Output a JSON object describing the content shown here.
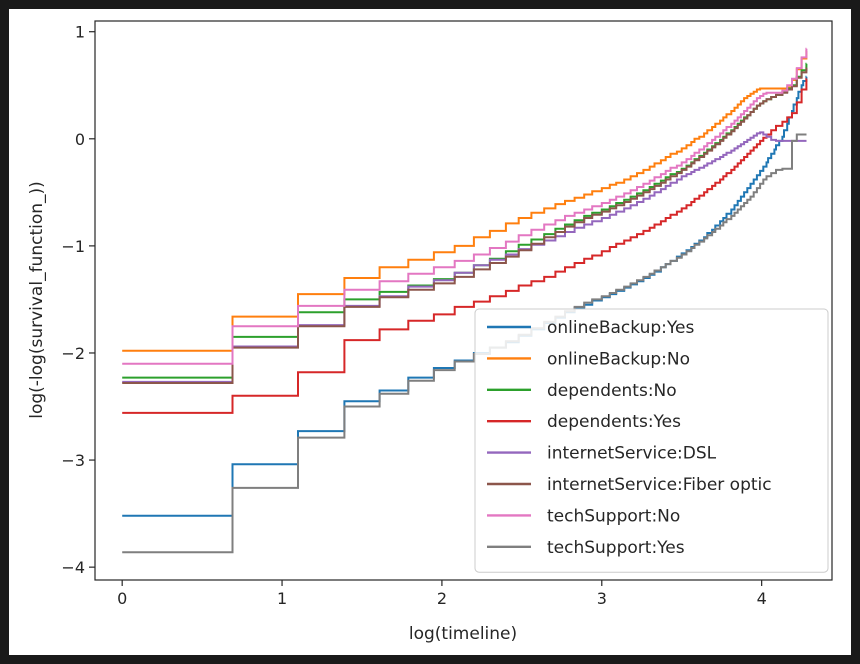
{
  "chart_data": {
    "type": "line",
    "step": true,
    "title": "",
    "xlabel": "log(timeline)",
    "ylabel": "log(-log(survival_function_))",
    "xlim": [
      -0.17,
      4.44
    ],
    "ylim": [
      -4.12,
      1.1
    ],
    "xticks": [
      0,
      1,
      2,
      3,
      4
    ],
    "yticks": [
      -4,
      -3,
      -2,
      -1,
      0,
      1
    ],
    "xtick_labels": [
      "0",
      "1",
      "2",
      "3",
      "4"
    ],
    "ytick_labels": [
      "−4",
      "−3",
      "−2",
      "−1",
      "0",
      "1"
    ],
    "grid": false,
    "legend_position": "lower-right",
    "series": [
      {
        "name": "onlineBackup:Yes",
        "color": "#1f77b4",
        "x": [
          0,
          0.69,
          1.1,
          1.39,
          1.61,
          1.79,
          1.95,
          2.08,
          2.2,
          2.3,
          2.4,
          2.48,
          2.56,
          2.64,
          2.71,
          2.77,
          2.83,
          2.89,
          2.94,
          3.0,
          3.05,
          3.09,
          3.14,
          3.18,
          3.22,
          3.26,
          3.3,
          3.33,
          3.37,
          3.4,
          3.43,
          3.47,
          3.5,
          3.53,
          3.56,
          3.58,
          3.61,
          3.64,
          3.66,
          3.69,
          3.71,
          3.74,
          3.76,
          3.78,
          3.81,
          3.83,
          3.85,
          3.87,
          3.89,
          3.91,
          3.93,
          3.95,
          3.97,
          3.99,
          4.01,
          4.03,
          4.04,
          4.06,
          4.08,
          4.09,
          4.11,
          4.13,
          4.14,
          4.16,
          4.17,
          4.19,
          4.2,
          4.22,
          4.23,
          4.25,
          4.26,
          4.28
        ],
        "y": [
          -3.52,
          -3.04,
          -2.73,
          -2.45,
          -2.35,
          -2.23,
          -2.14,
          -2.07,
          -2.0,
          -1.95,
          -1.9,
          -1.84,
          -1.78,
          -1.72,
          -1.67,
          -1.62,
          -1.58,
          -1.55,
          -1.51,
          -1.48,
          -1.45,
          -1.42,
          -1.39,
          -1.36,
          -1.33,
          -1.3,
          -1.27,
          -1.24,
          -1.2,
          -1.17,
          -1.14,
          -1.1,
          -1.07,
          -1.04,
          -1.01,
          -0.98,
          -0.95,
          -0.92,
          -0.88,
          -0.85,
          -0.81,
          -0.77,
          -0.74,
          -0.7,
          -0.66,
          -0.62,
          -0.58,
          -0.54,
          -0.5,
          -0.46,
          -0.42,
          -0.38,
          -0.34,
          -0.3,
          -0.26,
          -0.22,
          -0.18,
          -0.14,
          -0.1,
          -0.06,
          -0.02,
          0.02,
          0.08,
          0.14,
          0.2,
          0.26,
          0.32,
          0.38,
          0.44,
          0.5,
          0.54,
          0.58
        ]
      },
      {
        "name": "onlineBackup:No",
        "color": "#ff7f0e",
        "x": [
          0,
          0.69,
          1.1,
          1.39,
          1.61,
          1.79,
          1.95,
          2.08,
          2.2,
          2.3,
          2.4,
          2.48,
          2.56,
          2.64,
          2.71,
          2.77,
          2.83,
          2.89,
          2.94,
          3.0,
          3.05,
          3.09,
          3.14,
          3.18,
          3.22,
          3.26,
          3.3,
          3.33,
          3.37,
          3.4,
          3.43,
          3.47,
          3.5,
          3.53,
          3.56,
          3.58,
          3.61,
          3.64,
          3.66,
          3.69,
          3.71,
          3.74,
          3.76,
          3.78,
          3.81,
          3.83,
          3.85,
          3.87,
          3.89,
          3.91,
          3.93,
          3.95,
          3.97,
          3.99,
          4.01,
          4.03,
          4.06,
          4.09,
          4.13,
          4.16,
          4.19,
          4.22,
          4.25,
          4.28
        ],
        "y": [
          -1.98,
          -1.66,
          -1.45,
          -1.3,
          -1.2,
          -1.13,
          -1.06,
          -1.0,
          -0.92,
          -0.86,
          -0.79,
          -0.74,
          -0.69,
          -0.65,
          -0.61,
          -0.58,
          -0.55,
          -0.52,
          -0.49,
          -0.46,
          -0.43,
          -0.41,
          -0.38,
          -0.35,
          -0.32,
          -0.29,
          -0.26,
          -0.23,
          -0.2,
          -0.17,
          -0.14,
          -0.12,
          -0.09,
          -0.06,
          -0.03,
          0.0,
          0.02,
          0.05,
          0.08,
          0.11,
          0.14,
          0.17,
          0.2,
          0.23,
          0.26,
          0.29,
          0.32,
          0.35,
          0.38,
          0.4,
          0.42,
          0.44,
          0.46,
          0.47,
          0.47,
          0.47,
          0.47,
          0.47,
          0.47,
          0.48,
          0.55,
          0.65,
          0.75,
          0.82
        ]
      },
      {
        "name": "dependents:No",
        "color": "#2ca02c",
        "x": [
          0,
          0.69,
          1.1,
          1.39,
          1.61,
          1.79,
          1.95,
          2.08,
          2.2,
          2.3,
          2.4,
          2.48,
          2.56,
          2.64,
          2.71,
          2.77,
          2.83,
          2.89,
          2.94,
          3.0,
          3.05,
          3.09,
          3.14,
          3.18,
          3.22,
          3.26,
          3.3,
          3.33,
          3.37,
          3.4,
          3.43,
          3.47,
          3.5,
          3.53,
          3.56,
          3.58,
          3.61,
          3.64,
          3.66,
          3.69,
          3.71,
          3.74,
          3.76,
          3.78,
          3.81,
          3.83,
          3.85,
          3.87,
          3.89,
          3.91,
          3.93,
          3.95,
          3.97,
          3.99,
          4.01,
          4.03,
          4.06,
          4.09,
          4.13,
          4.16,
          4.19,
          4.22,
          4.25,
          4.28
        ],
        "y": [
          -2.23,
          -1.85,
          -1.62,
          -1.5,
          -1.43,
          -1.37,
          -1.31,
          -1.25,
          -1.18,
          -1.12,
          -1.05,
          -0.99,
          -0.94,
          -0.89,
          -0.84,
          -0.8,
          -0.76,
          -0.72,
          -0.69,
          -0.66,
          -0.63,
          -0.6,
          -0.57,
          -0.54,
          -0.51,
          -0.48,
          -0.45,
          -0.42,
          -0.39,
          -0.36,
          -0.33,
          -0.31,
          -0.28,
          -0.25,
          -0.22,
          -0.19,
          -0.16,
          -0.13,
          -0.1,
          -0.07,
          -0.04,
          -0.01,
          0.02,
          0.05,
          0.08,
          0.11,
          0.14,
          0.17,
          0.2,
          0.22,
          0.25,
          0.28,
          0.31,
          0.33,
          0.35,
          0.37,
          0.39,
          0.41,
          0.44,
          0.47,
          0.5,
          0.58,
          0.64,
          0.7
        ]
      },
      {
        "name": "dependents:Yes",
        "color": "#d62728",
        "x": [
          0,
          0.69,
          1.1,
          1.39,
          1.61,
          1.79,
          1.95,
          2.08,
          2.2,
          2.3,
          2.4,
          2.48,
          2.56,
          2.64,
          2.71,
          2.77,
          2.83,
          2.89,
          2.94,
          3.0,
          3.05,
          3.09,
          3.14,
          3.18,
          3.22,
          3.26,
          3.3,
          3.33,
          3.37,
          3.4,
          3.43,
          3.47,
          3.5,
          3.53,
          3.56,
          3.58,
          3.61,
          3.64,
          3.66,
          3.69,
          3.71,
          3.74,
          3.76,
          3.78,
          3.81,
          3.83,
          3.85,
          3.87,
          3.89,
          3.91,
          3.93,
          3.95,
          3.97,
          3.99,
          4.01,
          4.03,
          4.06,
          4.09,
          4.13,
          4.16,
          4.19,
          4.22,
          4.25,
          4.28
        ],
        "y": [
          -2.56,
          -2.4,
          -2.18,
          -1.88,
          -1.78,
          -1.7,
          -1.64,
          -1.57,
          -1.52,
          -1.47,
          -1.42,
          -1.37,
          -1.33,
          -1.29,
          -1.24,
          -1.2,
          -1.16,
          -1.12,
          -1.09,
          -1.05,
          -1.01,
          -0.98,
          -0.95,
          -0.92,
          -0.89,
          -0.86,
          -0.83,
          -0.8,
          -0.77,
          -0.74,
          -0.71,
          -0.68,
          -0.65,
          -0.62,
          -0.59,
          -0.56,
          -0.53,
          -0.5,
          -0.47,
          -0.44,
          -0.41,
          -0.38,
          -0.35,
          -0.32,
          -0.29,
          -0.26,
          -0.23,
          -0.2,
          -0.17,
          -0.14,
          -0.11,
          -0.08,
          -0.05,
          -0.02,
          0.01,
          0.04,
          0.08,
          0.12,
          0.16,
          0.2,
          0.24,
          0.34,
          0.46,
          0.56
        ]
      },
      {
        "name": "internetService:DSL",
        "color": "#9467bd",
        "x": [
          0,
          0.69,
          1.1,
          1.39,
          1.61,
          1.79,
          1.95,
          2.08,
          2.2,
          2.3,
          2.4,
          2.48,
          2.56,
          2.64,
          2.71,
          2.77,
          2.83,
          2.89,
          2.94,
          3.0,
          3.05,
          3.09,
          3.14,
          3.18,
          3.22,
          3.26,
          3.3,
          3.33,
          3.37,
          3.4,
          3.43,
          3.47,
          3.5,
          3.53,
          3.56,
          3.58,
          3.61,
          3.64,
          3.66,
          3.69,
          3.71,
          3.74,
          3.76,
          3.78,
          3.81,
          3.83,
          3.85,
          3.87,
          3.89,
          3.91,
          3.93,
          3.95,
          3.97,
          3.99,
          4.01,
          4.03,
          4.06,
          4.09,
          4.13,
          4.16,
          4.19,
          4.22,
          4.25,
          4.28
        ],
        "y": [
          -2.27,
          -1.94,
          -1.74,
          -1.56,
          -1.47,
          -1.38,
          -1.32,
          -1.25,
          -1.18,
          -1.13,
          -1.08,
          -1.03,
          -0.99,
          -0.95,
          -0.91,
          -0.87,
          -0.83,
          -0.8,
          -0.77,
          -0.74,
          -0.71,
          -0.68,
          -0.65,
          -0.62,
          -0.59,
          -0.56,
          -0.53,
          -0.5,
          -0.47,
          -0.44,
          -0.41,
          -0.38,
          -0.35,
          -0.33,
          -0.31,
          -0.29,
          -0.27,
          -0.25,
          -0.23,
          -0.21,
          -0.19,
          -0.17,
          -0.15,
          -0.13,
          -0.11,
          -0.09,
          -0.07,
          -0.05,
          -0.03,
          -0.01,
          0.01,
          0.03,
          0.05,
          0.06,
          0.04,
          0.02,
          -0.01,
          -0.02,
          -0.02,
          -0.02,
          -0.02,
          -0.02,
          -0.02,
          -0.02
        ]
      },
      {
        "name": "internetService:Fiber optic",
        "color": "#8c564b",
        "x": [
          0,
          0.69,
          1.1,
          1.39,
          1.61,
          1.79,
          1.95,
          2.08,
          2.2,
          2.3,
          2.4,
          2.48,
          2.56,
          2.64,
          2.71,
          2.77,
          2.83,
          2.89,
          2.94,
          3.0,
          3.05,
          3.09,
          3.14,
          3.18,
          3.22,
          3.26,
          3.3,
          3.33,
          3.37,
          3.4,
          3.43,
          3.47,
          3.5,
          3.53,
          3.56,
          3.58,
          3.61,
          3.64,
          3.66,
          3.69,
          3.71,
          3.74,
          3.76,
          3.78,
          3.81,
          3.83,
          3.85,
          3.87,
          3.89,
          3.91,
          3.93,
          3.95,
          3.97,
          3.99,
          4.01,
          4.03,
          4.06,
          4.09,
          4.13,
          4.16,
          4.19,
          4.22,
          4.25,
          4.28
        ],
        "y": [
          -2.28,
          -1.95,
          -1.75,
          -1.57,
          -1.48,
          -1.41,
          -1.35,
          -1.29,
          -1.22,
          -1.16,
          -1.1,
          -1.04,
          -0.98,
          -0.92,
          -0.87,
          -0.82,
          -0.78,
          -0.74,
          -0.71,
          -0.68,
          -0.65,
          -0.62,
          -0.59,
          -0.56,
          -0.53,
          -0.5,
          -0.47,
          -0.44,
          -0.41,
          -0.38,
          -0.35,
          -0.32,
          -0.29,
          -0.26,
          -0.23,
          -0.2,
          -0.17,
          -0.14,
          -0.11,
          -0.08,
          -0.05,
          -0.02,
          0.01,
          0.04,
          0.07,
          0.1,
          0.13,
          0.16,
          0.19,
          0.22,
          0.25,
          0.28,
          0.31,
          0.33,
          0.35,
          0.37,
          0.39,
          0.41,
          0.43,
          0.46,
          0.49,
          0.57,
          0.62,
          0.66
        ]
      },
      {
        "name": "techSupport:No",
        "color": "#e377c2",
        "x": [
          0,
          0.69,
          1.1,
          1.39,
          1.61,
          1.79,
          1.95,
          2.08,
          2.2,
          2.3,
          2.4,
          2.48,
          2.56,
          2.64,
          2.71,
          2.77,
          2.83,
          2.89,
          2.94,
          3.0,
          3.05,
          3.09,
          3.14,
          3.18,
          3.22,
          3.26,
          3.3,
          3.33,
          3.37,
          3.4,
          3.43,
          3.47,
          3.5,
          3.53,
          3.56,
          3.58,
          3.61,
          3.64,
          3.66,
          3.69,
          3.71,
          3.74,
          3.76,
          3.78,
          3.81,
          3.83,
          3.85,
          3.87,
          3.89,
          3.91,
          3.93,
          3.95,
          3.97,
          3.99,
          4.01,
          4.03,
          4.06,
          4.09,
          4.13,
          4.16,
          4.19,
          4.22,
          4.25,
          4.28
        ],
        "y": [
          -2.1,
          -1.75,
          -1.56,
          -1.41,
          -1.33,
          -1.26,
          -1.2,
          -1.14,
          -1.08,
          -1.02,
          -0.96,
          -0.9,
          -0.85,
          -0.8,
          -0.76,
          -0.72,
          -0.69,
          -0.66,
          -0.63,
          -0.6,
          -0.57,
          -0.54,
          -0.51,
          -0.48,
          -0.45,
          -0.42,
          -0.39,
          -0.36,
          -0.33,
          -0.3,
          -0.27,
          -0.25,
          -0.22,
          -0.19,
          -0.16,
          -0.13,
          -0.1,
          -0.07,
          -0.04,
          -0.01,
          0.02,
          0.05,
          0.08,
          0.11,
          0.14,
          0.17,
          0.2,
          0.23,
          0.26,
          0.29,
          0.32,
          0.35,
          0.38,
          0.4,
          0.42,
          0.43,
          0.43,
          0.43,
          0.45,
          0.5,
          0.56,
          0.66,
          0.76,
          0.84
        ]
      },
      {
        "name": "techSupport:Yes",
        "color": "#7f7f7f",
        "x": [
          0,
          0.69,
          1.1,
          1.39,
          1.61,
          1.79,
          1.95,
          2.08,
          2.2,
          2.3,
          2.4,
          2.48,
          2.56,
          2.64,
          2.71,
          2.77,
          2.83,
          2.89,
          2.94,
          3.0,
          3.05,
          3.09,
          3.14,
          3.18,
          3.22,
          3.26,
          3.3,
          3.33,
          3.37,
          3.4,
          3.43,
          3.47,
          3.5,
          3.53,
          3.56,
          3.58,
          3.61,
          3.64,
          3.66,
          3.69,
          3.71,
          3.74,
          3.76,
          3.78,
          3.81,
          3.83,
          3.85,
          3.87,
          3.89,
          3.91,
          3.93,
          3.95,
          3.97,
          3.99,
          4.01,
          4.03,
          4.06,
          4.09,
          4.13,
          4.16,
          4.19,
          4.22,
          4.25,
          4.28
        ],
        "y": [
          -3.86,
          -3.26,
          -2.79,
          -2.5,
          -2.38,
          -2.26,
          -2.16,
          -2.08,
          -2.01,
          -1.95,
          -1.89,
          -1.83,
          -1.77,
          -1.71,
          -1.66,
          -1.61,
          -1.57,
          -1.53,
          -1.5,
          -1.47,
          -1.44,
          -1.41,
          -1.38,
          -1.35,
          -1.32,
          -1.29,
          -1.26,
          -1.23,
          -1.2,
          -1.17,
          -1.14,
          -1.11,
          -1.08,
          -1.05,
          -1.02,
          -0.99,
          -0.96,
          -0.93,
          -0.9,
          -0.87,
          -0.84,
          -0.81,
          -0.78,
          -0.75,
          -0.72,
          -0.69,
          -0.66,
          -0.63,
          -0.6,
          -0.57,
          -0.54,
          -0.5,
          -0.46,
          -0.42,
          -0.38,
          -0.35,
          -0.32,
          -0.29,
          -0.28,
          -0.28,
          -0.02,
          0.04,
          0.04,
          0.04
        ]
      }
    ]
  }
}
